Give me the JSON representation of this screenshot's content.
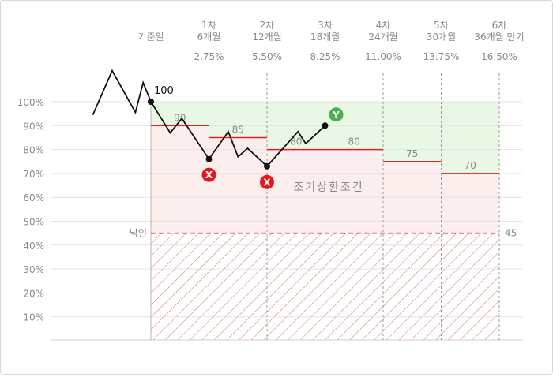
{
  "chart_data": {
    "type": "line",
    "start_label": "기준일",
    "start_value": 100,
    "knock_in_label": "낙인",
    "knock_in_value": 45,
    "early_redemption_label": "조기상환조건",
    "y_ticks": [
      "100%",
      "90%",
      "80%",
      "70%",
      "60%",
      "50%",
      "40%",
      "30%",
      "20%",
      "10%"
    ],
    "ylim": [
      0,
      105
    ],
    "checkpoints": [
      {
        "round": "1차",
        "period": "6개월",
        "coupon": "2.75%",
        "barrier": 90
      },
      {
        "round": "2차",
        "period": "12개월",
        "coupon": "5.50%",
        "barrier": 85
      },
      {
        "round": "3차",
        "period": "18개월",
        "coupon": "8.25%",
        "barrier": 80
      },
      {
        "round": "4차",
        "period": "24개월",
        "coupon": "11.00%",
        "barrier": 80
      },
      {
        "round": "5차",
        "period": "30개월",
        "coupon": "13.75%",
        "barrier": 75
      },
      {
        "round": "6차",
        "period": "36개월 만기",
        "coupon": "16.50%",
        "barrier": 70
      }
    ],
    "results": [
      {
        "checkpoint": "1차",
        "mark": "X",
        "value": 76
      },
      {
        "checkpoint": "2차",
        "mark": "X",
        "value": 73
      },
      {
        "checkpoint": "3차",
        "mark": "Y",
        "value": 90
      }
    ],
    "price_path": [
      {
        "t": -3.0,
        "v": 94.5
      },
      {
        "t": -2.0,
        "v": 113
      },
      {
        "t": -0.8,
        "v": 95.5
      },
      {
        "t": -0.4,
        "v": 108
      },
      {
        "t": 0,
        "v": 100
      },
      {
        "t": 1.0,
        "v": 87
      },
      {
        "t": 1.6,
        "v": 93
      },
      {
        "t": 3.0,
        "v": 76
      },
      {
        "t": 4.0,
        "v": 87.5
      },
      {
        "t": 4.5,
        "v": 77
      },
      {
        "t": 5.0,
        "v": 80.5
      },
      {
        "t": 6.0,
        "v": 73
      },
      {
        "t": 7.6,
        "v": 87.5
      },
      {
        "t": 8.0,
        "v": 82.5
      },
      {
        "t": 9.0,
        "v": 90
      }
    ],
    "colors": {
      "barrier_line": "#e02020",
      "knock_in_line": "#d32f2f",
      "success_zone": "#e8f8e4",
      "fail_zone": "#fdeeee",
      "hatch": "#e57373",
      "result_x": "#e5151b",
      "result_y": "#4caf50",
      "price": "#111111"
    }
  }
}
